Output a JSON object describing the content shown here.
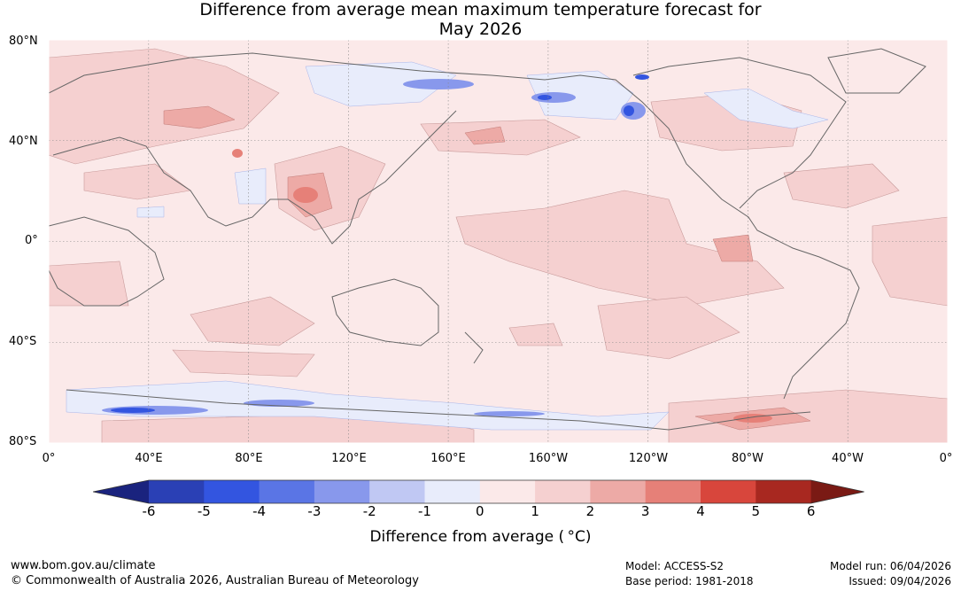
{
  "title_line1": "Difference from average mean maximum temperature forecast for",
  "title_line2": "May 2026",
  "map": {
    "lat_labels": [
      "80°N",
      "40°N",
      "0°",
      "40°S",
      "80°S"
    ],
    "lon_labels": [
      "0°",
      "40°E",
      "80°E",
      "120°E",
      "160°E",
      "160°W",
      "120°W",
      "80°W",
      "40°W",
      "0°"
    ]
  },
  "colorbar": {
    "ticks": [
      "-6",
      "-5",
      "-4",
      "-3",
      "-2",
      "-1",
      "0",
      "1",
      "2",
      "3",
      "4",
      "5",
      "6"
    ],
    "colors": [
      "#1a237e",
      "#2a40b5",
      "#3355e0",
      "#5a75e5",
      "#8898ec",
      "#c0c8f3",
      "#e8ecfb",
      "#fbe9e9",
      "#f5d0d0",
      "#edaaa6",
      "#e68078",
      "#d8463c",
      "#a82820",
      "#7a1a14"
    ],
    "label": "Difference from average ( °C)"
  },
  "footer": {
    "url": "www.bom.gov.au/climate",
    "copyright": "© Commonwealth of Australia 2026, Australian Bureau of Meteorology",
    "model": "Model: ACCESS-S2",
    "base_period": "Base period: 1981-2018",
    "model_run": "Model run: 06/04/2026",
    "issued": "Issued: 09/04/2026"
  }
}
